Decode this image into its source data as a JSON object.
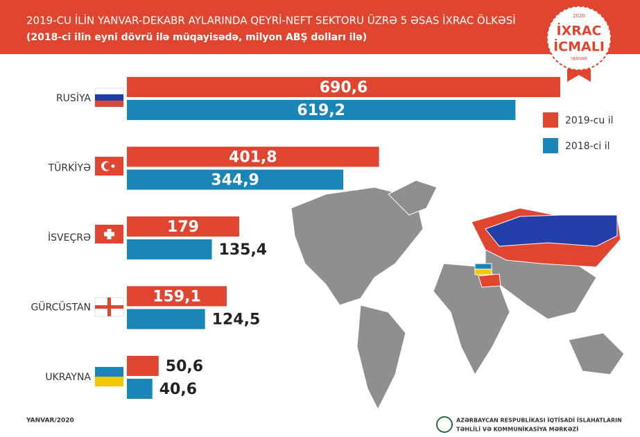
{
  "chart_data": {
    "type": "hbar",
    "title": "2019-CU İLİN YANVAR-DEKABR AYLARINDA QEYRİ-NEFT SEKTORU ÜZRƏ 5 ƏSAS İXRAC ÖLKƏSİ",
    "subtitle": "(2018-ci ilin eyni dövrü ilə müqayisədə, milyon ABŞ dolları ilə)",
    "categories": [
      "RUSİYA",
      "TÜRKİYƏ",
      "İSVEÇRƏ",
      "GÜRCÜSTAN",
      "UKRAYNA"
    ],
    "series": [
      {
        "name": "2019-cu il",
        "color": "#e0452f",
        "values": [
          690.6,
          401.8,
          179,
          159.1,
          50.6
        ],
        "value_labels": [
          "690,6",
          "401,8",
          "179",
          "159,1",
          "50,6"
        ]
      },
      {
        "name": "2018-ci il",
        "color": "#1a86b8",
        "values": [
          619.2,
          344.9,
          135.4,
          124.5,
          40.6
        ],
        "value_labels": [
          "619,2",
          "344,9",
          "135,4",
          "124,5",
          "40,6"
        ]
      }
    ]
  },
  "badge": {
    "title_1": "İXRAC",
    "title_2": "İCMALI",
    "year": "2020",
    "month": "YANVAR"
  },
  "footer": {
    "date": "YANVAR/2020",
    "org_1": "AZƏRBAYCAN RESPUBLİKASI İQTİSADİ İSLAHATLARIN",
    "org_2": "TƏHLİLİ VƏ KOMMUNİKASİYA MƏRKƏZİ"
  }
}
